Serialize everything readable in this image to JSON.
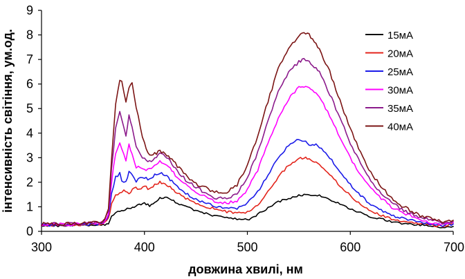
{
  "chart_data": {
    "type": "line",
    "title": "",
    "xlabel": "довжина хвилі, нм",
    "ylabel": "інтенсивність світіння, ум.од.",
    "xlim": [
      300,
      700
    ],
    "ylim": [
      0,
      9
    ],
    "xticks": [
      300,
      400,
      500,
      600,
      700
    ],
    "yticks": [
      0,
      1,
      2,
      3,
      4,
      5,
      6,
      7,
      8,
      9
    ],
    "grid": false,
    "legend_position": "top-right",
    "series": [
      {
        "name": "15мА",
        "color": "#000000",
        "x": [
          300,
          320,
          340,
          360,
          365,
          368,
          372,
          378,
          385,
          390,
          395,
          400,
          405,
          410,
          415,
          420,
          425,
          430,
          440,
          450,
          460,
          470,
          480,
          490,
          500,
          505,
          510,
          520,
          530,
          540,
          550,
          555,
          560,
          570,
          580,
          590,
          600,
          610,
          620,
          630,
          640,
          650,
          660,
          670,
          680,
          690,
          700
        ],
        "y": [
          0.22,
          0.22,
          0.24,
          0.26,
          0.3,
          0.6,
          0.75,
          0.85,
          0.95,
          1.0,
          1.1,
          1.15,
          1.05,
          1.2,
          1.35,
          1.4,
          1.3,
          1.2,
          1.0,
          0.85,
          0.72,
          0.62,
          0.55,
          0.5,
          0.47,
          0.55,
          0.7,
          0.95,
          1.2,
          1.35,
          1.45,
          1.5,
          1.5,
          1.45,
          1.3,
          1.1,
          0.9,
          0.75,
          0.6,
          0.5,
          0.4,
          0.33,
          0.28,
          0.25,
          0.2,
          0.15,
          0.2
        ]
      },
      {
        "name": "20мА",
        "color": "#e3241b",
        "x": [
          300,
          320,
          340,
          360,
          365,
          368,
          372,
          376,
          380,
          385,
          390,
          395,
          400,
          405,
          410,
          415,
          420,
          425,
          430,
          440,
          450,
          460,
          470,
          480,
          490,
          500,
          510,
          520,
          530,
          540,
          550,
          555,
          560,
          565,
          570,
          580,
          590,
          600,
          610,
          620,
          630,
          640,
          650,
          660,
          670,
          680,
          690,
          700
        ],
        "y": [
          0.25,
          0.25,
          0.27,
          0.3,
          0.5,
          1.1,
          1.45,
          1.55,
          1.7,
          1.5,
          1.8,
          1.7,
          1.85,
          1.7,
          1.9,
          2.0,
          1.95,
          1.8,
          1.6,
          1.35,
          1.15,
          1.0,
          0.9,
          0.8,
          0.75,
          0.78,
          1.05,
          1.6,
          2.2,
          2.7,
          2.95,
          3.0,
          2.95,
          2.85,
          2.7,
          2.3,
          1.85,
          1.45,
          1.1,
          0.85,
          0.65,
          0.5,
          0.4,
          0.35,
          0.3,
          0.25,
          0.2,
          0.3
        ]
      },
      {
        "name": "25мА",
        "color": "#1a1ae8",
        "x": [
          300,
          320,
          340,
          360,
          365,
          368,
          372,
          376,
          378,
          382,
          385,
          388,
          392,
          396,
          400,
          405,
          410,
          415,
          420,
          425,
          430,
          440,
          450,
          460,
          470,
          480,
          490,
          500,
          510,
          520,
          530,
          540,
          550,
          555,
          560,
          565,
          570,
          580,
          590,
          600,
          610,
          620,
          630,
          640,
          650,
          660,
          670,
          680,
          690,
          700
        ],
        "y": [
          0.25,
          0.25,
          0.28,
          0.32,
          0.6,
          1.5,
          2.2,
          2.35,
          2.1,
          2.0,
          2.45,
          2.3,
          2.05,
          2.2,
          2.2,
          2.1,
          2.3,
          2.4,
          2.3,
          2.1,
          1.9,
          1.55,
          1.3,
          1.15,
          1.0,
          0.95,
          0.95,
          1.15,
          1.6,
          2.3,
          3.0,
          3.5,
          3.75,
          3.7,
          3.55,
          3.55,
          3.45,
          3.0,
          2.4,
          1.9,
          1.45,
          1.1,
          0.85,
          0.65,
          0.55,
          0.45,
          0.35,
          0.3,
          0.25,
          0.3
        ]
      },
      {
        "name": "30мА",
        "color": "#ff00ff",
        "x": [
          300,
          320,
          340,
          360,
          365,
          368,
          372,
          376,
          378,
          382,
          385,
          388,
          392,
          396,
          400,
          405,
          410,
          415,
          420,
          425,
          430,
          440,
          450,
          460,
          470,
          480,
          490,
          500,
          510,
          520,
          530,
          540,
          550,
          555,
          560,
          565,
          570,
          580,
          590,
          600,
          610,
          620,
          630,
          640,
          650,
          660,
          670,
          680,
          690,
          700
        ],
        "y": [
          0.28,
          0.28,
          0.3,
          0.35,
          0.7,
          2.0,
          3.2,
          3.6,
          3.3,
          2.9,
          3.55,
          3.1,
          2.6,
          2.6,
          2.5,
          2.55,
          2.7,
          2.85,
          2.75,
          2.55,
          2.3,
          1.9,
          1.6,
          1.4,
          1.2,
          1.15,
          1.25,
          1.7,
          2.5,
          3.6,
          4.6,
          5.4,
          5.85,
          5.9,
          5.85,
          5.7,
          5.5,
          4.7,
          3.8,
          3.0,
          2.3,
          1.75,
          1.35,
          1.0,
          0.8,
          0.6,
          0.45,
          0.35,
          0.3,
          0.35
        ]
      },
      {
        "name": "35мА",
        "color": "#8b1a8b",
        "x": [
          300,
          320,
          340,
          360,
          365,
          368,
          372,
          376,
          378,
          382,
          385,
          388,
          392,
          396,
          400,
          405,
          410,
          415,
          420,
          425,
          430,
          440,
          450,
          460,
          470,
          480,
          490,
          500,
          510,
          520,
          530,
          540,
          550,
          555,
          560,
          565,
          570,
          580,
          590,
          600,
          610,
          620,
          630,
          640,
          650,
          660,
          670,
          680,
          690,
          700
        ],
        "y": [
          0.3,
          0.3,
          0.32,
          0.38,
          0.8,
          2.5,
          4.2,
          4.85,
          4.5,
          3.9,
          4.75,
          4.2,
          3.4,
          3.1,
          3.0,
          2.85,
          3.0,
          3.15,
          3.1,
          2.85,
          2.55,
          2.1,
          1.8,
          1.55,
          1.35,
          1.35,
          1.55,
          2.2,
          3.2,
          4.5,
          5.7,
          6.5,
          6.9,
          7.0,
          6.9,
          6.7,
          6.5,
          5.6,
          4.6,
          3.6,
          2.75,
          2.05,
          1.55,
          1.15,
          0.9,
          0.7,
          0.55,
          0.45,
          0.35,
          0.4
        ]
      },
      {
        "name": "40мА",
        "color": "#7b1414",
        "x": [
          300,
          320,
          340,
          360,
          365,
          368,
          372,
          376,
          378,
          382,
          385,
          388,
          392,
          396,
          400,
          405,
          410,
          415,
          420,
          425,
          430,
          440,
          450,
          460,
          470,
          480,
          490,
          500,
          510,
          520,
          530,
          540,
          550,
          555,
          560,
          565,
          570,
          580,
          590,
          600,
          610,
          620,
          630,
          640,
          650,
          660,
          670,
          680,
          690,
          700
        ],
        "y": [
          0.3,
          0.3,
          0.33,
          0.4,
          0.9,
          3.0,
          5.2,
          6.2,
          6.1,
          5.2,
          5.9,
          6.05,
          5.1,
          4.2,
          3.6,
          3.1,
          3.15,
          3.25,
          3.2,
          3.0,
          2.75,
          2.3,
          1.95,
          1.75,
          1.6,
          1.6,
          1.9,
          2.7,
          3.9,
          5.3,
          6.6,
          7.5,
          7.95,
          8.05,
          8.0,
          7.7,
          7.4,
          6.5,
          5.3,
          4.2,
          3.2,
          2.4,
          1.8,
          1.35,
          1.05,
          0.8,
          0.6,
          0.5,
          0.4,
          0.45
        ]
      }
    ]
  }
}
